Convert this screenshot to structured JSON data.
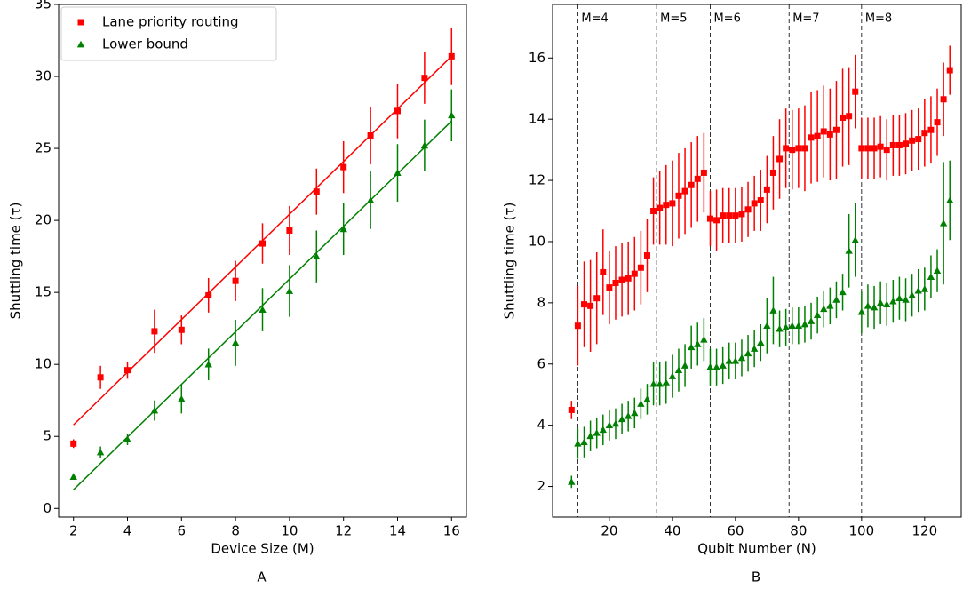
{
  "chart_data": [
    {
      "type": "errorbar",
      "caption": "A",
      "xlabel": "Device Size (M)",
      "ylabel": "Shuttling time (τ)",
      "xlim": [
        1.45,
        16.55
      ],
      "ylim": [
        -0.6,
        35
      ],
      "xticks": [
        2,
        4,
        6,
        8,
        10,
        12,
        14,
        16
      ],
      "yticks": [
        0,
        5,
        10,
        15,
        20,
        25,
        30,
        35
      ],
      "legend": "upper left",
      "x": [
        2,
        3,
        4,
        5,
        6,
        7,
        8,
        9,
        10,
        11,
        12,
        13,
        14,
        15,
        16
      ],
      "series": [
        {
          "name": "Lane priority routing",
          "color": "#ff0000",
          "marker": "square",
          "values": [
            4.5,
            9.1,
            9.6,
            12.3,
            12.4,
            14.8,
            15.8,
            18.4,
            19.3,
            22.0,
            23.7,
            25.9,
            27.6,
            29.9,
            31.4
          ],
          "errors": [
            0.3,
            0.8,
            0.6,
            1.5,
            1.0,
            1.2,
            1.4,
            1.4,
            1.7,
            1.6,
            1.8,
            2.0,
            1.9,
            1.8,
            2.0
          ],
          "fit": {
            "x": [
              2,
              16
            ],
            "values": [
              5.8,
              31.4
            ]
          }
        },
        {
          "name": "Lower bound",
          "color": "#008000",
          "marker": "triangle",
          "values": [
            2.2,
            3.9,
            4.8,
            6.8,
            7.6,
            10.0,
            11.5,
            13.8,
            15.1,
            17.5,
            19.4,
            21.4,
            23.3,
            25.2,
            27.3
          ],
          "errors": [
            0.2,
            0.4,
            0.4,
            0.7,
            1.0,
            1.1,
            1.6,
            1.5,
            1.8,
            1.8,
            1.8,
            2.0,
            2.0,
            1.8,
            1.8
          ],
          "fit": {
            "x": [
              2,
              16
            ],
            "values": [
              1.3,
              26.9
            ]
          }
        }
      ]
    },
    {
      "type": "errorbar",
      "caption": "B",
      "xlabel": "Qubit Number (N)",
      "ylabel": "Shuttling time (τ)",
      "xlim": [
        2,
        131.6
      ],
      "ylim": [
        1.0,
        17.75
      ],
      "xticks": [
        20,
        40,
        60,
        80,
        100,
        120
      ],
      "yticks": [
        2,
        4,
        6,
        8,
        10,
        12,
        14,
        16
      ],
      "vlines": [
        {
          "x": 10,
          "label": "M=4"
        },
        {
          "x": 35,
          "label": "M=5"
        },
        {
          "x": 52,
          "label": "M=6"
        },
        {
          "x": 77,
          "label": "M=7"
        },
        {
          "x": 100,
          "label": "M=8"
        }
      ],
      "x": [
        8,
        10,
        12,
        14,
        16,
        18,
        20,
        22,
        24,
        26,
        28,
        30,
        32,
        34,
        36,
        38,
        40,
        42,
        44,
        46,
        48,
        50,
        52,
        54,
        56,
        58,
        60,
        62,
        64,
        66,
        68,
        70,
        72,
        74,
        76,
        78,
        80,
        82,
        84,
        86,
        88,
        90,
        92,
        94,
        96,
        98,
        100,
        102,
        104,
        106,
        108,
        110,
        112,
        114,
        116,
        118,
        120,
        122,
        124,
        126,
        128
      ],
      "series": [
        {
          "color": "#ff0000",
          "marker": "square",
          "values": [
            4.5,
            7.25,
            7.95,
            7.9,
            8.15,
            9.0,
            8.5,
            8.65,
            8.75,
            8.8,
            8.95,
            9.15,
            9.55,
            11.0,
            11.1,
            11.2,
            11.25,
            11.5,
            11.65,
            11.85,
            12.05,
            12.25,
            10.75,
            10.7,
            10.85,
            10.85,
            10.85,
            10.9,
            11.05,
            11.25,
            11.35,
            11.7,
            12.25,
            12.7,
            13.05,
            13.0,
            13.05,
            13.05,
            13.4,
            13.45,
            13.6,
            13.5,
            13.65,
            14.05,
            14.1,
            14.9,
            13.05,
            13.05,
            13.05,
            13.1,
            13.0,
            13.15,
            13.15,
            13.2,
            13.3,
            13.35,
            13.55,
            13.65,
            13.9,
            14.65,
            15.6
          ],
          "errors": [
            0.3,
            1.3,
            1.4,
            1.5,
            1.5,
            1.4,
            1.2,
            1.2,
            1.2,
            1.2,
            1.2,
            1.2,
            1.2,
            1.1,
            1.2,
            1.3,
            1.4,
            1.4,
            1.4,
            1.4,
            1.4,
            1.3,
            0.9,
            1.0,
            0.9,
            0.9,
            0.9,
            0.9,
            0.9,
            0.9,
            1.0,
            1.1,
            1.2,
            1.3,
            1.3,
            1.3,
            1.3,
            1.4,
            1.5,
            1.5,
            1.5,
            1.5,
            1.6,
            1.6,
            1.6,
            1.2,
            1.0,
            1.0,
            1.0,
            1.0,
            1.0,
            1.0,
            1.0,
            1.0,
            1.0,
            1.0,
            1.1,
            1.1,
            1.1,
            1.2,
            0.8
          ]
        },
        {
          "color": "#008000",
          "marker": "triangle",
          "values": [
            2.15,
            3.4,
            3.45,
            3.65,
            3.75,
            3.85,
            4.0,
            4.05,
            4.2,
            4.3,
            4.4,
            4.7,
            4.85,
            5.35,
            5.35,
            5.4,
            5.6,
            5.8,
            5.95,
            6.55,
            6.65,
            6.8,
            5.9,
            5.9,
            5.95,
            6.1,
            6.1,
            6.2,
            6.35,
            6.5,
            6.7,
            7.25,
            7.75,
            7.15,
            7.2,
            7.25,
            7.25,
            7.3,
            7.4,
            7.6,
            7.8,
            7.9,
            8.1,
            8.35,
            9.7,
            10.05,
            7.7,
            7.9,
            7.85,
            8.0,
            7.95,
            8.05,
            8.15,
            8.1,
            8.25,
            8.4,
            8.45,
            8.85,
            9.05,
            10.6,
            11.35
          ],
          "errors": [
            0.2,
            0.5,
            0.5,
            0.5,
            0.5,
            0.5,
            0.5,
            0.5,
            0.5,
            0.5,
            0.5,
            0.5,
            0.5,
            0.7,
            0.7,
            0.7,
            0.7,
            0.7,
            0.7,
            0.7,
            0.7,
            0.7,
            0.6,
            0.6,
            0.6,
            0.6,
            0.6,
            0.6,
            0.6,
            0.6,
            0.6,
            0.9,
            1.1,
            0.6,
            0.6,
            0.6,
            0.6,
            0.6,
            0.6,
            0.6,
            0.6,
            0.6,
            0.6,
            0.6,
            1.2,
            1.2,
            0.7,
            0.7,
            0.7,
            0.7,
            0.7,
            0.7,
            0.7,
            0.7,
            0.7,
            0.7,
            0.7,
            0.7,
            0.7,
            2.0,
            1.3
          ]
        }
      ]
    }
  ]
}
